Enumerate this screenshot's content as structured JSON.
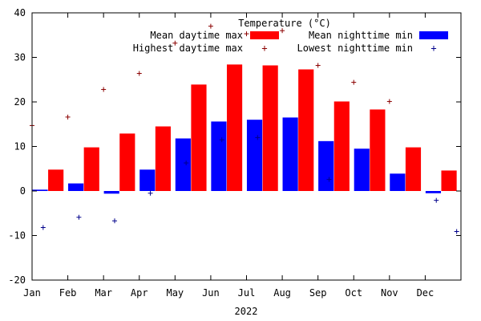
{
  "chart_data": {
    "type": "bar",
    "title": "Temperature (°C)",
    "xlabel": "2022",
    "ylabel": "",
    "ylim": [
      -20,
      40
    ],
    "yticks": [
      "40",
      "30",
      "20",
      "10",
      "0",
      "-10",
      "-20"
    ],
    "categories": [
      "Jan",
      "Feb",
      "Mar",
      "Apr",
      "May",
      "Jun",
      "Jul",
      "Aug",
      "Sep",
      "Oct",
      "Nov",
      "Dec"
    ],
    "legend_position": "top-right",
    "grid": false,
    "series": [
      {
        "name": "Mean daytime max",
        "kind": "bar",
        "color": "#ff0000",
        "values": [
          4.8,
          9.8,
          12.9,
          14.5,
          23.9,
          28.4,
          28.2,
          27.3,
          20.1,
          18.3,
          9.8,
          4.6
        ]
      },
      {
        "name": "Mean nighttime min",
        "kind": "bar",
        "color": "#0000ff",
        "values": [
          0.3,
          1.7,
          -0.6,
          4.8,
          11.8,
          15.6,
          16.0,
          16.5,
          11.2,
          9.5,
          3.9,
          -0.5
        ]
      },
      {
        "name": "Highest daytime max",
        "kind": "point",
        "marker": "+",
        "color": "#8b0000",
        "values": [
          14.7,
          16.6,
          22.8,
          26.4,
          33.2,
          37.0,
          35.3,
          36.0,
          28.2,
          24.4,
          20.1,
          null
        ]
      },
      {
        "name": "Lowest nighttime min",
        "kind": "point",
        "marker": "+",
        "color": "#00008b",
        "values": [
          -8.2,
          -5.9,
          -6.7,
          -0.5,
          6.3,
          11.5,
          12.0,
          null,
          2.6,
          null,
          null,
          -2.1
        ]
      },
      {
        "name": "",
        "kind": "point",
        "marker": "+",
        "color": "#00008b",
        "values": [
          null,
          null,
          null,
          null,
          null,
          null,
          null,
          null,
          null,
          null,
          null,
          -9.1
        ]
      }
    ]
  }
}
